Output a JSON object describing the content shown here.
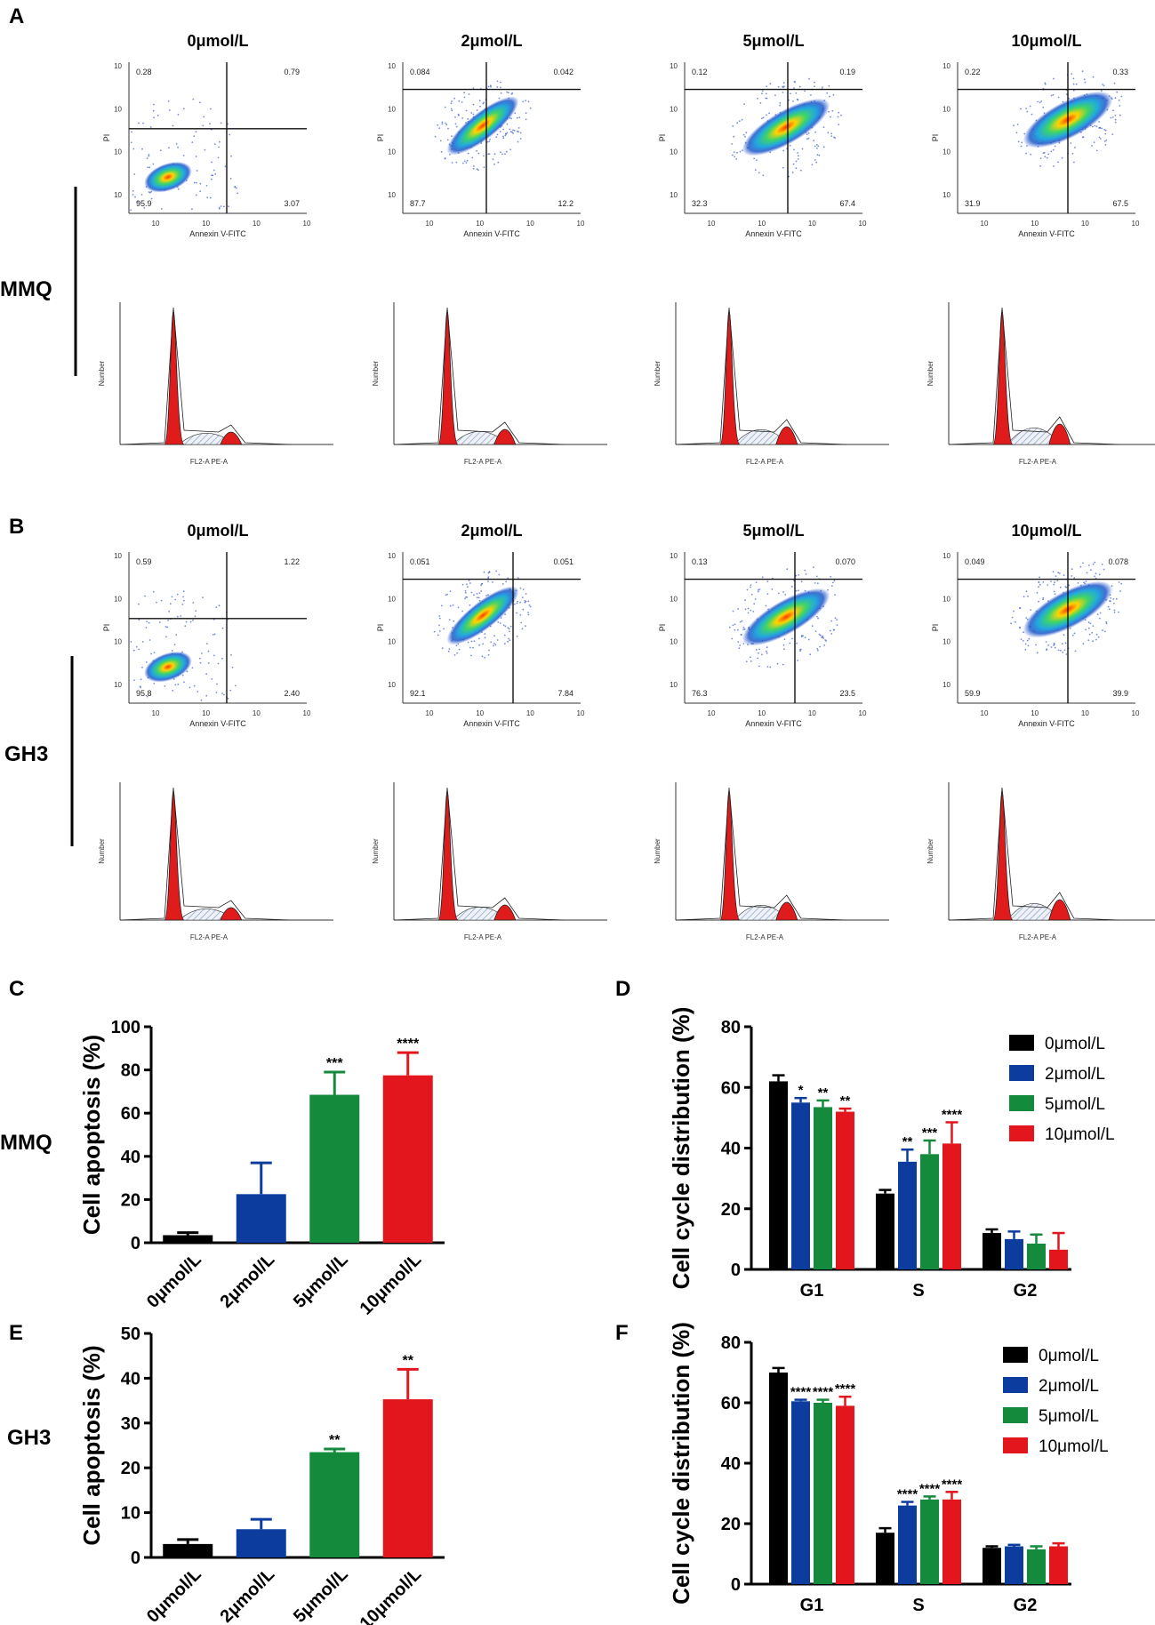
{
  "colors": {
    "c0": "#000000",
    "c2": "#0c3c9e",
    "c5": "#138a3c",
    "c10": "#e3161d",
    "histRed": "#e01b1b",
    "hatch": "#8aa0c0"
  },
  "panel_labels": {
    "A": "A",
    "B": "B",
    "C": "C",
    "D": "D",
    "E": "E",
    "F": "F"
  },
  "row_labels": {
    "mmq": "MMQ",
    "gh3": "GH3",
    "mmq2": "MMQ",
    "gh32": "GH3"
  },
  "concentrations": [
    "0μmol/L",
    "2μmol/L",
    "5μmol/L",
    "10μmol/L"
  ],
  "flow_axes": {
    "x": "Annexin V-FITC",
    "y": "PI",
    "hist_x": "FL2-A PE-A",
    "hist_y": "Number"
  },
  "flow": {
    "mmq": [
      {
        "ul": "0.28",
        "ur": "0.79",
        "ll": "95.9",
        "lr": "3.07"
      },
      {
        "ul": "0.084",
        "ur": "0.042",
        "ll": "87.7",
        "lr": "12.2"
      },
      {
        "ul": "0.12",
        "ur": "0.19",
        "ll": "32.3",
        "lr": "67.4"
      },
      {
        "ul": "0.22",
        "ur": "0.33",
        "ll": "31.9",
        "lr": "67.5"
      }
    ],
    "gh3": [
      {
        "ul": "0.59",
        "ur": "1.22",
        "ll": "95.8",
        "lr": "2.40"
      },
      {
        "ul": "0.051",
        "ur": "0.051",
        "ll": "92.1",
        "lr": "7.84"
      },
      {
        "ul": "0.13",
        "ur": "0.070",
        "ll": "76.3",
        "lr": "23.5"
      },
      {
        "ul": "0.049",
        "ur": "0.078",
        "ll": "59.9",
        "lr": "39.9"
      }
    ]
  },
  "chart_data": [
    {
      "id": "C",
      "type": "bar",
      "ylabel": "Cell apoptosis (%)",
      "ylim": [
        0,
        100
      ],
      "yticks": [
        0,
        20,
        40,
        60,
        80,
        100
      ],
      "categories": [
        "0μmol/L",
        "2μmol/L",
        "5μmol/L",
        "10μmol/L"
      ],
      "values": [
        3.5,
        22.5,
        68.5,
        77.5
      ],
      "errors": [
        1.2,
        14.5,
        10.5,
        10.5
      ],
      "sig": [
        "",
        "",
        "***",
        "****"
      ]
    },
    {
      "id": "D",
      "type": "bar",
      "ylabel": "Cell cycle distribution (%)",
      "ylim": [
        0,
        80
      ],
      "yticks": [
        0,
        20,
        40,
        60,
        80
      ],
      "categories": [
        "G1",
        "S",
        "G2"
      ],
      "series": [
        {
          "name": "0μmol/L",
          "values": [
            62,
            25,
            12
          ],
          "errors": [
            2,
            1.2,
            1.2
          ]
        },
        {
          "name": "2μmol/L",
          "values": [
            55,
            35.5,
            10
          ],
          "errors": [
            1.5,
            4,
            2.5
          ]
        },
        {
          "name": "5μmol/L",
          "values": [
            53.5,
            38,
            8.5
          ],
          "errors": [
            2.2,
            4.5,
            3
          ]
        },
        {
          "name": "10μmol/L",
          "values": [
            52,
            41.5,
            6.5
          ],
          "errors": [
            1,
            7,
            5.5
          ]
        }
      ],
      "sig": [
        [
          "",
          "*",
          "**",
          "**"
        ],
        [
          "",
          "**",
          "***",
          "****"
        ],
        [
          "",
          "",
          "",
          ""
        ]
      ]
    },
    {
      "id": "E",
      "type": "bar",
      "ylabel": "Cell apoptosis (%)",
      "ylim": [
        0,
        50
      ],
      "yticks": [
        0,
        10,
        20,
        30,
        40,
        50
      ],
      "categories": [
        "0μmol/L",
        "2μmol/L",
        "5μmol/L",
        "10μmol/L"
      ],
      "values": [
        3,
        6.3,
        23.5,
        35.3
      ],
      "errors": [
        1,
        2.2,
        0.7,
        6.7
      ],
      "sig": [
        "",
        "",
        "**",
        "**"
      ]
    },
    {
      "id": "F",
      "type": "bar",
      "ylabel": "Cell cycle distribution (%)",
      "ylim": [
        0,
        80
      ],
      "yticks": [
        0,
        20,
        40,
        60,
        80
      ],
      "categories": [
        "G1",
        "S",
        "G2"
      ],
      "series": [
        {
          "name": "0μmol/L",
          "values": [
            70,
            17,
            12
          ],
          "errors": [
            1.5,
            1.5,
            0.5
          ]
        },
        {
          "name": "2μmol/L",
          "values": [
            60.5,
            26,
            12.5
          ],
          "errors": [
            0.5,
            1.2,
            0.5
          ]
        },
        {
          "name": "5μmol/L",
          "values": [
            60,
            28,
            11.5
          ],
          "errors": [
            1,
            1,
            1
          ]
        },
        {
          "name": "10μmol/L",
          "values": [
            59,
            28,
            12.5
          ],
          "errors": [
            3,
            2.5,
            1
          ]
        }
      ],
      "sig": [
        [
          "",
          "****",
          "****",
          "****"
        ],
        [
          "",
          "****",
          "****",
          "****"
        ],
        [
          "",
          "",
          "",
          ""
        ]
      ]
    }
  ]
}
